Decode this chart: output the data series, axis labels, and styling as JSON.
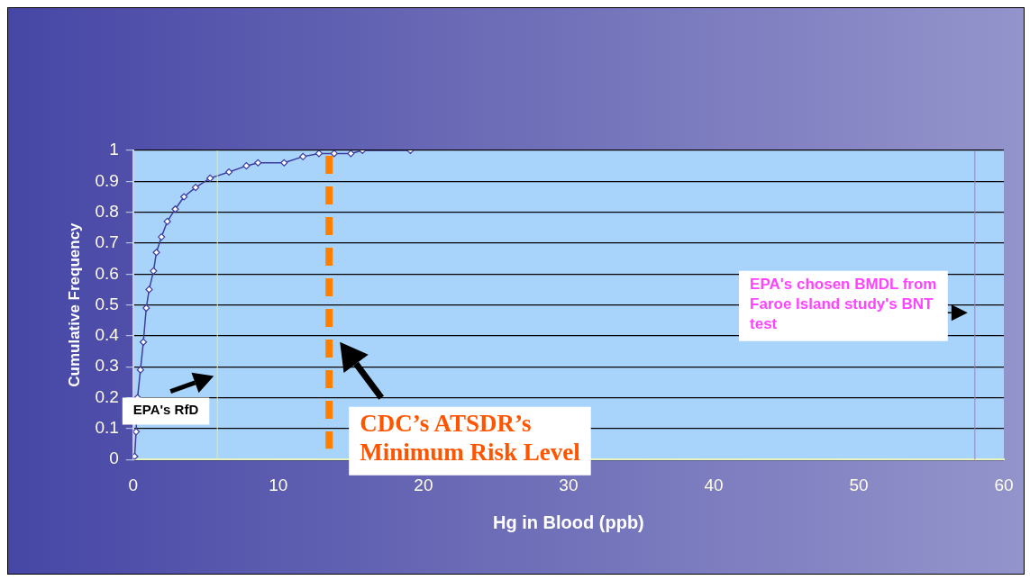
{
  "chart_data": {
    "type": "line",
    "xlabel": "Hg in Blood (ppb)",
    "ylabel": "Cumulative Frequency",
    "x": [
      0.1,
      0.2,
      0.3,
      0.5,
      0.7,
      0.9,
      1.1,
      1.4,
      1.6,
      1.95,
      2.35,
      2.9,
      3.5,
      4.3,
      5.3,
      6.6,
      7.8,
      8.6,
      10.4,
      11.7,
      12.8,
      13.85,
      15.0,
      15.8,
      19.1
    ],
    "series": [
      {
        "color": "#3c3c9c",
        "values": [
          0.01,
          0.09,
          0.2,
          0.29,
          0.38,
          0.49,
          0.55,
          0.61,
          0.67,
          0.72,
          0.77,
          0.81,
          0.85,
          0.88,
          0.91,
          0.93,
          0.95,
          0.96,
          0.96,
          0.98,
          0.99,
          0.99,
          0.99,
          1.0,
          1.0
        ]
      }
    ],
    "marker": "diamond",
    "xlim": [
      0,
      60
    ],
    "xticks": [
      0,
      10,
      20,
      30,
      40,
      50,
      60
    ],
    "ylim": [
      0,
      1
    ],
    "yticks": [
      0,
      0.1,
      0.2,
      0.3,
      0.4,
      0.5,
      0.6,
      0.7,
      0.8,
      0.9,
      1
    ],
    "grid": "y",
    "legend": false,
    "ref_lines": [
      {
        "axis": "x",
        "value": 5.8,
        "label": "EPA's RfD",
        "color": "#f0f060"
      },
      {
        "axis": "x",
        "value": 13.5,
        "label": "CDC’s ATSDR’s Minimum Risk Level",
        "color": "#ff8000",
        "line_style": "dashed"
      },
      {
        "axis": "x",
        "value": 58,
        "label": "EPA's chosen BMDL from Faroe Island study's BNT test",
        "color": "#d060e0"
      }
    ]
  }
}
